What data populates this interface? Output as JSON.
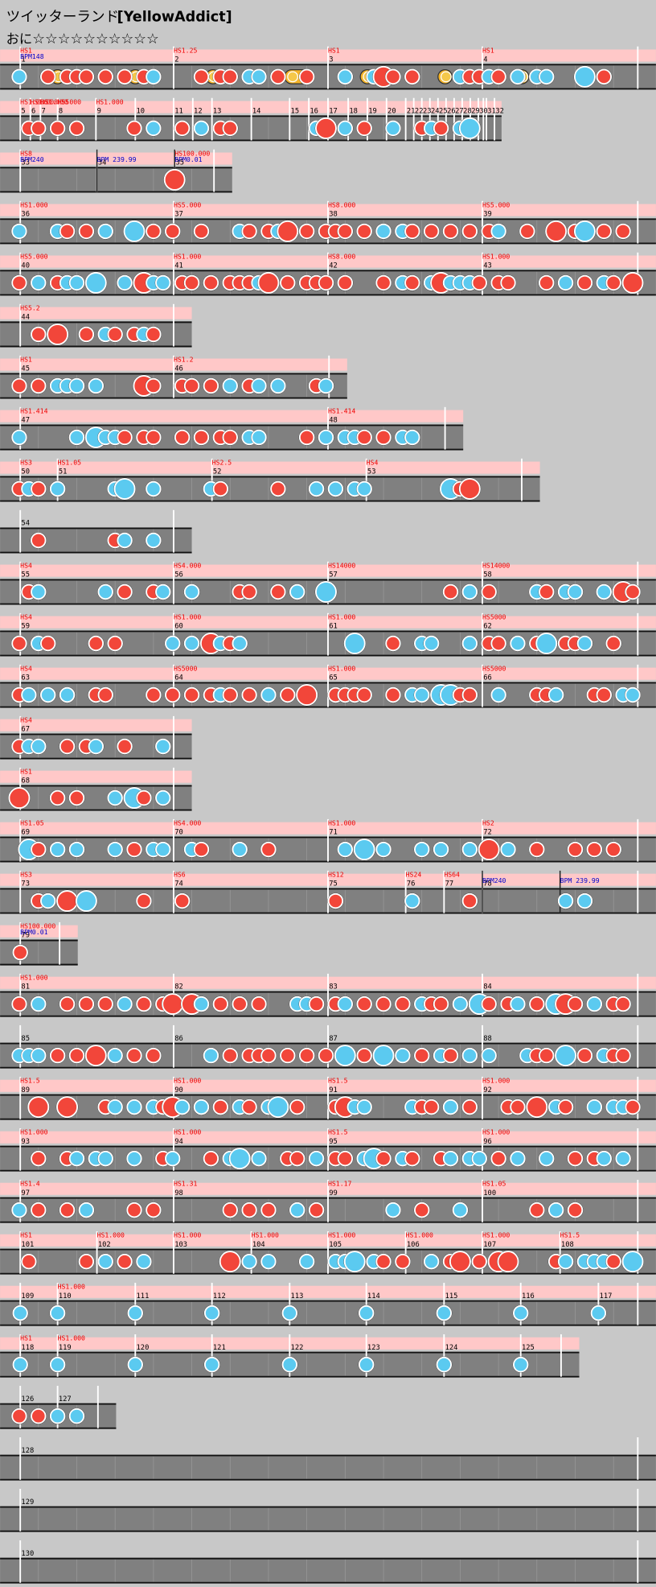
{
  "header": {
    "song": "ツイッターランド",
    "player": "[YellowAddict]",
    "course": "おに",
    "stars": "☆☆☆☆☆☆☆☆☆☆"
  },
  "rows": [
    {
      "measures": [
        "1",
        "2",
        "3",
        "4"
      ],
      "hs": [
        "HS1",
        "HS1.25",
        "HS1",
        "HS1"
      ],
      "bpm": [
        "BPM148"
      ]
    },
    {
      "measures": [
        "5",
        "6",
        "7",
        "8",
        "9",
        "10",
        "11",
        "12",
        "13",
        "14",
        "15",
        "16",
        "17",
        "18",
        "19",
        "20",
        "21",
        "22",
        "23",
        "24",
        "25",
        "26",
        "27",
        "28",
        "29",
        "30",
        "31",
        "32"
      ],
      "hs": [
        "HS1.000",
        "HS1.000",
        "HS1.000",
        "HS5000",
        "HS1.000"
      ]
    },
    {
      "measures": [
        "33",
        "34",
        "35"
      ],
      "hs": [
        "HS8",
        null,
        "HS100.000"
      ],
      "bpm": [
        "BPM240",
        "BPM 239.99",
        "BPM0.01"
      ]
    },
    {
      "measures": [
        "36",
        "37",
        "38",
        "39"
      ],
      "hs": [
        "HS1.000",
        "HS5.000",
        "HS8.000",
        "HS5.000"
      ]
    },
    {
      "measures": [
        "40",
        "41",
        "42",
        "43"
      ],
      "hs": [
        "HS5.000",
        "HS1.000",
        "HS8.000",
        "HS1.000"
      ]
    },
    {
      "measures": [
        "44"
      ],
      "hs": [
        "HS5.2"
      ]
    },
    {
      "measures": [
        "45",
        "46"
      ],
      "hs": [
        "HS1",
        "HS1.2"
      ]
    },
    {
      "measures": [
        "47",
        "48"
      ],
      "hs": [
        "HS1.414",
        "HS1.414"
      ]
    },
    {
      "measures": [
        "50",
        "51",
        "52",
        "53"
      ],
      "hs": [
        "HS3",
        "HS1.05",
        "HS2.5",
        "HS4"
      ]
    },
    {
      "measures": [
        "54"
      ],
      "hs": [
        null
      ]
    },
    {
      "measures": [
        "55",
        "56",
        "57",
        "58"
      ],
      "hs": [
        "HS4",
        "HS4.000",
        "HS14000",
        "HS14000"
      ]
    },
    {
      "measures": [
        "59",
        "60",
        "61",
        "62"
      ],
      "hs": [
        "HS4",
        "HS1.000",
        "HS1.000",
        "HS5000"
      ]
    },
    {
      "measures": [
        "63",
        "64",
        "65",
        "66"
      ],
      "hs": [
        "HS4",
        "HS5000",
        "HS1.000",
        "HS5000"
      ]
    },
    {
      "measures": [
        "67"
      ],
      "hs": [
        "HS4"
      ]
    },
    {
      "measures": [
        "68"
      ],
      "hs": [
        "HS1"
      ]
    },
    {
      "measures": [
        "69",
        "70",
        "71",
        "72"
      ],
      "hs": [
        "HS1.05",
        "HS4.000",
        "HS1.000",
        "HS2"
      ]
    },
    {
      "measures": [
        "73",
        "74",
        "75",
        "76",
        "77",
        "78"
      ],
      "hs": [
        "HS3",
        "HS6",
        "HS12",
        "HS24",
        "HS64"
      ],
      "bpm": [
        "BPM240",
        "BPM 239.99"
      ]
    },
    {
      "measures": [
        "79"
      ],
      "hs": [
        "HS100.000"
      ],
      "bpm": [
        "BPM0.01"
      ]
    },
    {
      "measures": [
        "81",
        "82",
        "83",
        "84"
      ],
      "hs": [
        "HS1.000"
      ]
    },
    {
      "measures": [
        "85",
        "86",
        "87",
        "88"
      ],
      "hs": []
    },
    {
      "measures": [
        "89",
        "90",
        "91",
        "92"
      ],
      "hs": [
        "HS1.5",
        "HS1.000",
        "HS1.5",
        "HS1.000"
      ]
    },
    {
      "measures": [
        "93",
        "94",
        "95",
        "96"
      ],
      "hs": [
        "HS1.000",
        "HS1.000",
        "HS1.5",
        "HS1.000"
      ]
    },
    {
      "measures": [
        "97",
        "98",
        "99",
        "100"
      ],
      "hs": [
        "HS1.4",
        "HS1.31",
        "HS1.17",
        "HS1.05"
      ]
    },
    {
      "measures": [
        "101",
        "102",
        "103",
        "104",
        "105",
        "106",
        "107",
        "108"
      ],
      "hs": [
        "HS1",
        "HS1.000",
        "HS1.000",
        "HS1.000",
        "HS1.000",
        "HS1.000",
        "HS1.000",
        "HS1.5"
      ]
    },
    {
      "measures": [
        "109",
        "110",
        "111",
        "112",
        "113",
        "114",
        "115",
        "116",
        "117"
      ],
      "hs": [
        null,
        "HS1.000"
      ]
    },
    {
      "measures": [
        "118",
        "119",
        "120",
        "121",
        "122",
        "123",
        "124",
        "125"
      ],
      "hs": [
        "HS1",
        "HS1.000"
      ]
    },
    {
      "measures": [
        "126",
        "127"
      ],
      "hs": []
    },
    {
      "measures": [
        "128"
      ],
      "hs": []
    },
    {
      "measures": [
        "129"
      ],
      "hs": []
    },
    {
      "measures": [
        "130"
      ],
      "hs": []
    }
  ]
}
